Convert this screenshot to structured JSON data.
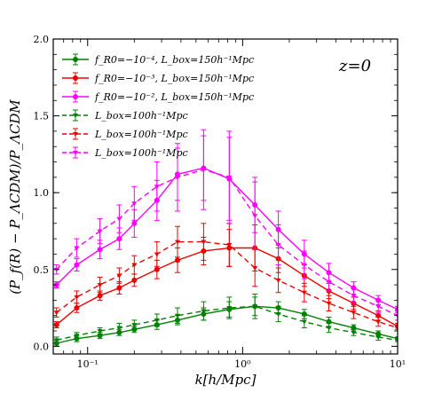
{
  "chart_data": {
    "type": "line",
    "xscale": "log",
    "xlim": [
      0.06,
      10
    ],
    "ylim": [
      -0.05,
      2.0
    ],
    "xlabel": "k[h/Mpc]",
    "ylabel": "(P_f(R) − P_ΛCDM)/P_ΛCDM",
    "annotation": "z=0",
    "xticks": [
      {
        "value": 0.1,
        "label": "10⁻¹"
      },
      {
        "value": 1,
        "label": "10⁰"
      },
      {
        "value": 10,
        "label": "10¹"
      }
    ],
    "yticks": [
      {
        "value": 0.0,
        "label": "0.0"
      },
      {
        "value": 0.5,
        "label": "0.5"
      },
      {
        "value": 1.0,
        "label": "1.0"
      },
      {
        "value": 1.5,
        "label": "1.5"
      },
      {
        "value": 2.0,
        "label": "2.0"
      }
    ],
    "legend_position": "top-left",
    "x": [
      0.063,
      0.085,
      0.12,
      0.16,
      0.2,
      0.28,
      0.38,
      0.56,
      0.82,
      1.2,
      1.7,
      2.5,
      3.6,
      5.2,
      7.5,
      10
    ],
    "series": [
      {
        "name": "f_R0=−10⁻⁴, L_box=150h⁻¹Mpc",
        "color": "#008000",
        "dash": "solid",
        "marker": "dot",
        "y": [
          0.02,
          0.05,
          0.07,
          0.09,
          0.11,
          0.14,
          0.17,
          0.21,
          0.24,
          0.26,
          0.25,
          0.21,
          0.16,
          0.12,
          0.08,
          0.05
        ],
        "err": [
          0.02,
          0.02,
          0.02,
          0.02,
          0.02,
          0.03,
          0.03,
          0.04,
          0.05,
          0.06,
          0.04,
          0.03,
          0.03,
          0.02,
          0.02,
          0.01
        ]
      },
      {
        "name": "f_R0=−10⁻³, L_box=150h⁻¹Mpc",
        "color": "#ee0000",
        "dash": "solid",
        "marker": "dot",
        "y": [
          0.14,
          0.25,
          0.33,
          0.38,
          0.43,
          0.5,
          0.56,
          0.62,
          0.64,
          0.64,
          0.57,
          0.46,
          0.36,
          0.28,
          0.2,
          0.13
        ],
        "err": [
          0.02,
          0.03,
          0.03,
          0.04,
          0.04,
          0.06,
          0.08,
          0.09,
          0.12,
          0.15,
          0.09,
          0.07,
          0.05,
          0.04,
          0.03,
          0.02
        ]
      },
      {
        "name": "f_R0=−10⁻², L_box=150h⁻¹Mpc",
        "color": "#ff00ff",
        "dash": "solid",
        "marker": "dot",
        "y": [
          0.4,
          0.53,
          0.63,
          0.7,
          0.8,
          0.95,
          1.12,
          1.16,
          1.09,
          0.92,
          0.76,
          0.6,
          0.48,
          0.38,
          0.3,
          0.24
        ],
        "err": [
          0.02,
          0.04,
          0.06,
          0.07,
          0.09,
          0.13,
          0.17,
          0.21,
          0.27,
          0.18,
          0.12,
          0.09,
          0.06,
          0.04,
          0.03,
          0.02
        ]
      },
      {
        "name": "L_box=100h⁻¹Mpc",
        "color": "#008000",
        "dash": "dashed",
        "marker": "tri",
        "y": [
          0.04,
          0.07,
          0.1,
          0.12,
          0.14,
          0.17,
          0.2,
          0.23,
          0.25,
          0.26,
          0.21,
          0.16,
          0.12,
          0.09,
          0.06,
          0.04
        ],
        "err": [
          0.02,
          0.02,
          0.02,
          0.03,
          0.03,
          0.04,
          0.05,
          0.06,
          0.07,
          0.08,
          0.05,
          0.04,
          0.03,
          0.02,
          0.02,
          0.01
        ]
      },
      {
        "name": "L_box=100h⁻¹Mpc",
        "color": "#ee0000",
        "dash": "dashed",
        "marker": "tri",
        "y": [
          0.22,
          0.32,
          0.4,
          0.46,
          0.53,
          0.6,
          0.68,
          0.68,
          0.66,
          0.51,
          0.43,
          0.35,
          0.28,
          0.22,
          0.16,
          0.12
        ],
        "err": [
          0.03,
          0.04,
          0.05,
          0.05,
          0.06,
          0.08,
          0.1,
          0.12,
          0.14,
          0.12,
          0.08,
          0.06,
          0.05,
          0.04,
          0.03,
          0.02
        ]
      },
      {
        "name": "L_box=100h⁻¹Mpc",
        "color": "#ff00ff",
        "dash": "dashed",
        "marker": "tri",
        "y": [
          0.5,
          0.64,
          0.75,
          0.83,
          0.93,
          1.04,
          1.1,
          1.15,
          1.1,
          0.85,
          0.66,
          0.53,
          0.42,
          0.33,
          0.26,
          0.2
        ],
        "err": [
          0.03,
          0.06,
          0.08,
          0.09,
          0.11,
          0.16,
          0.22,
          0.26,
          0.3,
          0.22,
          0.13,
          0.09,
          0.06,
          0.05,
          0.04,
          0.03
        ]
      }
    ]
  }
}
